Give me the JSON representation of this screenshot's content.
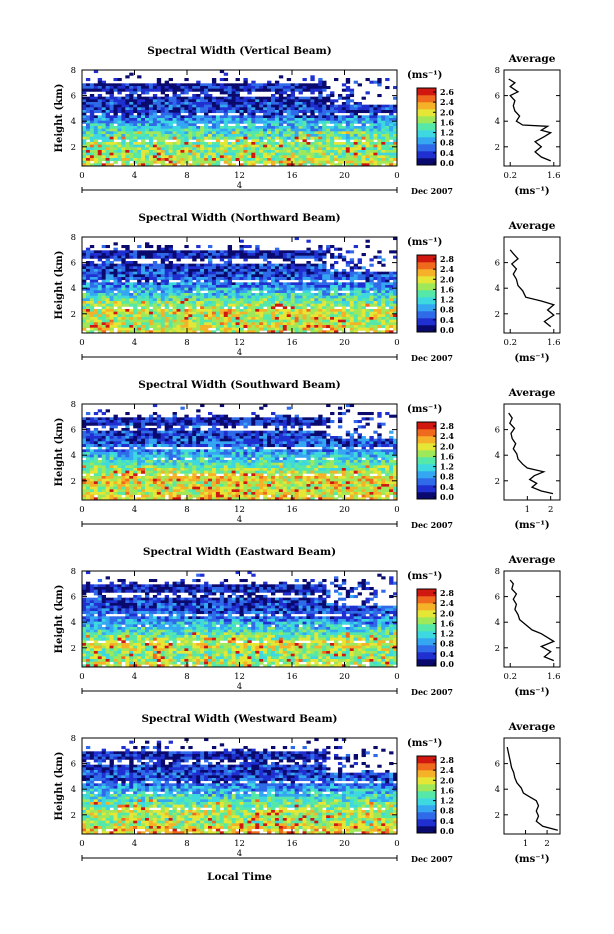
{
  "figure": {
    "x_axis_label": "Local Time",
    "date_label": "Dec 2007",
    "day_label": "4",
    "height_label": "Height (km)",
    "colorbar_unit": "(ms⁻¹)",
    "avg_title": "Average",
    "avg_unit": "(ms⁻¹)",
    "colormap": [
      "#0a0a6e",
      "#1f2fd0",
      "#2f6ae8",
      "#34a6f2",
      "#3ed8e0",
      "#55e8a8",
      "#9ee85a",
      "#e6e636",
      "#f5b128",
      "#f06a1e",
      "#d01810"
    ]
  },
  "chart_data": [
    {
      "type": "heatmap",
      "title": "Spectral Width (Vertical Beam)",
      "x_ticks": [
        "0",
        "4",
        "8",
        "12",
        "16",
        "20",
        "0"
      ],
      "y_ticks": [
        "8",
        "6",
        "4",
        "2"
      ],
      "xlim": [
        0,
        24
      ],
      "ylim": [
        0.5,
        8
      ],
      "colorbar_ticks": [
        "2.6",
        "2.4",
        "2.0",
        "1.6",
        "1.2",
        "0.8",
        "0.4",
        "0.0"
      ],
      "colorbar_range": [
        0,
        2.8
      ],
      "value_profile": {
        "heights": [
          0.8,
          1.5,
          2.2,
          3.0,
          3.8,
          4.5,
          5.2,
          6.0,
          6.8,
          7.3
        ],
        "values": [
          1.8,
          1.5,
          1.6,
          1.3,
          1.0,
          0.5,
          0.4,
          0.3,
          0.25,
          0.2
        ]
      },
      "average": {
        "title": "Average",
        "x_ticks": [
          "0.2",
          "1.6"
        ],
        "xlim": [
          0,
          1.8
        ],
        "y_ticks": [
          "8",
          "6",
          "4",
          "2"
        ],
        "ylim": [
          0.5,
          8
        ],
        "points": [
          [
            1.5,
            0.9
          ],
          [
            1.2,
            1.2
          ],
          [
            1.0,
            1.6
          ],
          [
            1.2,
            2.0
          ],
          [
            1.0,
            2.4
          ],
          [
            1.3,
            2.8
          ],
          [
            1.5,
            3.1
          ],
          [
            1.2,
            3.3
          ],
          [
            1.4,
            3.6
          ],
          [
            0.6,
            3.7
          ],
          [
            0.4,
            4.0
          ],
          [
            0.5,
            4.4
          ],
          [
            0.35,
            4.8
          ],
          [
            0.3,
            5.2
          ],
          [
            0.35,
            5.6
          ],
          [
            0.2,
            6.0
          ],
          [
            0.45,
            6.3
          ],
          [
            0.2,
            6.7
          ],
          [
            0.35,
            7.0
          ],
          [
            0.15,
            7.3
          ]
        ]
      }
    },
    {
      "type": "heatmap",
      "title": "Spectral Width (Northward Beam)",
      "x_ticks": [
        "0",
        "4",
        "8",
        "12",
        "16",
        "20",
        "0"
      ],
      "y_ticks": [
        "8",
        "6",
        "4",
        "2"
      ],
      "xlim": [
        0,
        24
      ],
      "ylim": [
        0.5,
        8
      ],
      "colorbar_ticks": [
        "2.8",
        "2.4",
        "2.0",
        "1.6",
        "1.2",
        "0.8",
        "0.4",
        "0.0"
      ],
      "colorbar_range": [
        0,
        2.8
      ],
      "value_profile": {
        "heights": [
          0.8,
          1.5,
          2.2,
          3.0,
          3.8,
          4.5,
          5.2,
          6.0,
          6.8,
          7.3
        ],
        "values": [
          1.9,
          1.7,
          1.8,
          1.4,
          1.0,
          0.6,
          0.45,
          0.35,
          0.3,
          0.2
        ]
      },
      "average": {
        "title": "Average",
        "x_ticks": [
          "0.2",
          "1.6"
        ],
        "xlim": [
          0,
          1.8
        ],
        "y_ticks": [
          "6",
          "4",
          "2"
        ],
        "ylim": [
          0.5,
          8
        ],
        "points": [
          [
            1.5,
            1.0
          ],
          [
            1.3,
            1.4
          ],
          [
            1.6,
            1.9
          ],
          [
            1.4,
            2.3
          ],
          [
            1.6,
            2.7
          ],
          [
            1.2,
            3.0
          ],
          [
            0.7,
            3.3
          ],
          [
            0.6,
            3.8
          ],
          [
            0.45,
            4.2
          ],
          [
            0.4,
            4.7
          ],
          [
            0.3,
            5.1
          ],
          [
            0.4,
            5.5
          ],
          [
            0.25,
            5.9
          ],
          [
            0.45,
            6.3
          ],
          [
            0.3,
            6.7
          ],
          [
            0.2,
            7.0
          ]
        ]
      }
    },
    {
      "type": "heatmap",
      "title": "Spectral Width (Southward Beam)",
      "x_ticks": [
        "0",
        "4",
        "8",
        "12",
        "16",
        "20",
        "0"
      ],
      "y_ticks": [
        "8",
        "6",
        "4",
        "2"
      ],
      "xlim": [
        0,
        24
      ],
      "ylim": [
        0.5,
        8
      ],
      "colorbar_ticks": [
        "2.8",
        "2.4",
        "2.0",
        "1.6",
        "1.2",
        "0.8",
        "0.4",
        "0.0"
      ],
      "colorbar_range": [
        0,
        2.8
      ],
      "value_profile": {
        "heights": [
          0.8,
          1.5,
          2.2,
          3.0,
          3.8,
          4.5,
          5.2,
          6.0,
          6.8,
          7.3
        ],
        "values": [
          1.9,
          1.8,
          2.0,
          1.5,
          1.1,
          0.7,
          0.5,
          0.4,
          0.3,
          0.2
        ]
      },
      "average": {
        "title": "Average",
        "x_ticks": [
          "1",
          "2"
        ],
        "xlim": [
          0,
          2.4
        ],
        "y_ticks": [
          "6",
          "4",
          "2"
        ],
        "ylim": [
          0.5,
          8
        ],
        "points": [
          [
            2.1,
            1.0
          ],
          [
            1.6,
            1.2
          ],
          [
            1.2,
            1.5
          ],
          [
            1.4,
            1.8
          ],
          [
            1.1,
            2.1
          ],
          [
            1.3,
            2.4
          ],
          [
            1.7,
            2.7
          ],
          [
            1.0,
            3.0
          ],
          [
            0.8,
            3.3
          ],
          [
            0.6,
            3.7
          ],
          [
            0.55,
            4.1
          ],
          [
            0.4,
            4.5
          ],
          [
            0.5,
            4.9
          ],
          [
            0.35,
            5.3
          ],
          [
            0.3,
            5.7
          ],
          [
            0.45,
            6.1
          ],
          [
            0.25,
            6.5
          ],
          [
            0.35,
            6.9
          ],
          [
            0.2,
            7.3
          ]
        ]
      }
    },
    {
      "type": "heatmap",
      "title": "Spectral Width (Eastward Beam)",
      "x_ticks": [
        "0",
        "4",
        "8",
        "12",
        "16",
        "20",
        "0"
      ],
      "y_ticks": [
        "8",
        "6",
        "4",
        "2"
      ],
      "xlim": [
        0,
        24
      ],
      "ylim": [
        0.5,
        8
      ],
      "colorbar_ticks": [
        "2.8",
        "2.4",
        "2.0",
        "1.6",
        "1.2",
        "0.8",
        "0.4",
        "0.0"
      ],
      "colorbar_range": [
        0,
        2.8
      ],
      "value_profile": {
        "heights": [
          0.8,
          1.5,
          2.2,
          3.0,
          3.8,
          4.5,
          5.2,
          6.0,
          6.8,
          7.3
        ],
        "values": [
          1.7,
          1.5,
          1.9,
          1.4,
          1.0,
          0.6,
          0.45,
          0.35,
          0.3,
          0.2
        ]
      },
      "average": {
        "title": "Average",
        "x_ticks": [
          "0.2",
          "1.6"
        ],
        "xlim": [
          0,
          1.8
        ],
        "y_ticks": [
          "8",
          "6",
          "4",
          "2"
        ],
        "ylim": [
          0.5,
          8
        ],
        "points": [
          [
            1.6,
            1.0
          ],
          [
            1.3,
            1.3
          ],
          [
            1.5,
            1.7
          ],
          [
            1.2,
            2.1
          ],
          [
            1.6,
            2.5
          ],
          [
            1.4,
            2.8
          ],
          [
            1.2,
            3.1
          ],
          [
            0.9,
            3.4
          ],
          [
            0.7,
            3.8
          ],
          [
            0.5,
            4.2
          ],
          [
            0.45,
            4.6
          ],
          [
            0.35,
            5.0
          ],
          [
            0.4,
            5.4
          ],
          [
            0.3,
            5.8
          ],
          [
            0.4,
            6.2
          ],
          [
            0.25,
            6.6
          ],
          [
            0.3,
            7.0
          ],
          [
            0.2,
            7.3
          ]
        ]
      }
    },
    {
      "type": "heatmap",
      "title": "Spectral Width (Westward Beam)",
      "x_ticks": [
        "0",
        "4",
        "8",
        "12",
        "16",
        "20",
        "0"
      ],
      "y_ticks": [
        "8",
        "6",
        "4",
        "2"
      ],
      "xlim": [
        0,
        24
      ],
      "ylim": [
        0.5,
        8
      ],
      "colorbar_ticks": [
        "2.8",
        "2.4",
        "2.0",
        "1.6",
        "1.2",
        "0.8",
        "0.4",
        "0.0"
      ],
      "colorbar_range": [
        0,
        2.8
      ],
      "value_profile": {
        "heights": [
          0.8,
          1.5,
          2.2,
          3.0,
          3.8,
          4.5,
          5.2,
          6.0,
          6.8,
          7.3
        ],
        "values": [
          2.0,
          1.6,
          1.7,
          1.4,
          1.0,
          0.6,
          0.45,
          0.35,
          0.3,
          0.2
        ]
      },
      "average": {
        "title": "Average",
        "x_ticks": [
          "1",
          "2"
        ],
        "xlim": [
          0,
          2.6
        ],
        "y_ticks": [
          "6",
          "4",
          "2"
        ],
        "ylim": [
          0.5,
          8
        ],
        "points": [
          [
            2.5,
            0.8
          ],
          [
            1.8,
            1.1
          ],
          [
            1.5,
            1.5
          ],
          [
            1.6,
            1.9
          ],
          [
            1.5,
            2.3
          ],
          [
            1.6,
            2.7
          ],
          [
            1.5,
            3.1
          ],
          [
            1.2,
            3.4
          ],
          [
            0.9,
            3.7
          ],
          [
            0.8,
            4.1
          ],
          [
            0.6,
            4.5
          ],
          [
            0.5,
            4.9
          ],
          [
            0.45,
            5.3
          ],
          [
            0.35,
            5.7
          ],
          [
            0.3,
            6.1
          ],
          [
            0.25,
            6.5
          ],
          [
            0.2,
            6.9
          ],
          [
            0.15,
            7.3
          ]
        ]
      }
    }
  ]
}
